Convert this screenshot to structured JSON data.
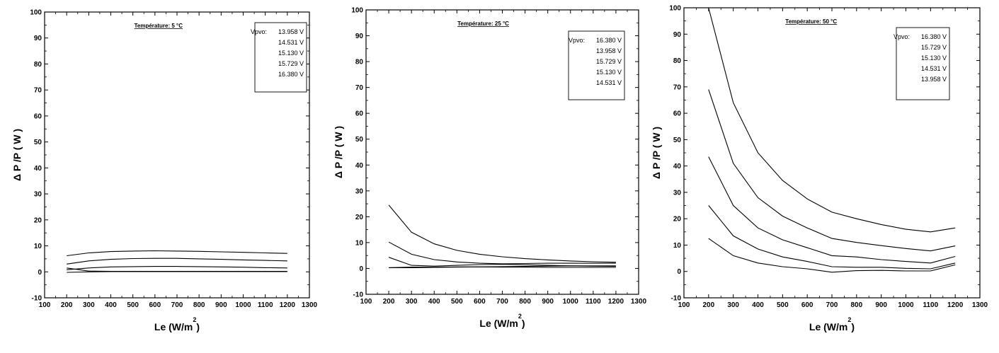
{
  "chart_data": [
    {
      "type": "line",
      "title": "Température: 5 °C",
      "xlabel": "Le (W/m",
      "xlabel_sup": "2",
      "xlabel_close": ")",
      "ylabel": "Δ P /P   ( W )",
      "xlim": [
        100,
        1300
      ],
      "ylim": [
        -10,
        100
      ],
      "xticks": [
        100,
        200,
        300,
        400,
        500,
        600,
        700,
        800,
        900,
        1000,
        1100,
        1200,
        1300
      ],
      "yticks": [
        -10,
        0,
        10,
        20,
        30,
        40,
        50,
        60,
        70,
        80,
        90,
        100
      ],
      "legend_prefix": "Vpvo:",
      "legend_position": "top-right",
      "x": [
        200,
        300,
        400,
        500,
        600,
        700,
        800,
        900,
        1000,
        1100,
        1200
      ],
      "series": [
        {
          "name": "13.958 V",
          "values": [
            1.5,
            0.3,
            0.2,
            0.2,
            0.2,
            0.2,
            0.2,
            0.2,
            0.2,
            0.2,
            0.2
          ]
        },
        {
          "name": "14.531 V",
          "values": [
            -0.2,
            0.0,
            0.1,
            0.1,
            0.1,
            0.1,
            0.1,
            0.1,
            0.1,
            0.1,
            0.1
          ]
        },
        {
          "name": "15.130 V",
          "values": [
            0.8,
            1.5,
            1.9,
            2.0,
            2.1,
            2.1,
            2.0,
            1.9,
            1.8,
            1.6,
            1.5
          ]
        },
        {
          "name": "15.729 V",
          "values": [
            3.0,
            4.2,
            4.8,
            5.1,
            5.2,
            5.2,
            5.0,
            4.8,
            4.6,
            4.4,
            4.2
          ]
        },
        {
          "name": "16.380 V",
          "values": [
            6.2,
            7.3,
            7.8,
            8.0,
            8.1,
            8.0,
            7.9,
            7.7,
            7.5,
            7.3,
            7.1
          ]
        }
      ]
    },
    {
      "type": "line",
      "title": "Température: 25 °C",
      "xlabel": "Le (W/m",
      "xlabel_sup": "2",
      "xlabel_close": ")",
      "ylabel": "Δ P /P   ( W )",
      "xlim": [
        100,
        1300
      ],
      "ylim": [
        -10,
        100
      ],
      "xticks": [
        100,
        200,
        300,
        400,
        500,
        600,
        700,
        800,
        900,
        1000,
        1100,
        1200,
        1300
      ],
      "yticks": [
        -10,
        0,
        10,
        20,
        30,
        40,
        50,
        60,
        70,
        80,
        90,
        100
      ],
      "legend_prefix": "Vpvo:",
      "legend_position": "top-right",
      "x": [
        200,
        300,
        400,
        500,
        600,
        700,
        800,
        900,
        1000,
        1100,
        1200
      ],
      "series": [
        {
          "name": "16.380 V",
          "values": [
            24.5,
            14.0,
            9.5,
            7.0,
            5.5,
            4.5,
            3.8,
            3.3,
            2.9,
            2.6,
            2.4
          ]
        },
        {
          "name": "13.958 V",
          "values": [
            0.3,
            0.3,
            0.4,
            0.5,
            0.6,
            0.7,
            0.8,
            0.9,
            1.0,
            1.0,
            1.0
          ]
        },
        {
          "name": "15.729 V",
          "values": [
            10.2,
            5.5,
            3.4,
            2.5,
            2.0,
            1.8,
            1.9,
            2.0,
            2.0,
            2.0,
            2.0
          ]
        },
        {
          "name": "15.130 V",
          "values": [
            4.3,
            1.2,
            0.9,
            1.2,
            1.5,
            1.6,
            1.4,
            1.2,
            1.0,
            0.9,
            0.8
          ]
        },
        {
          "name": "14.531 V",
          "values": [
            0.3,
            0.5,
            0.5,
            0.6,
            0.6,
            0.5,
            0.5,
            0.4,
            0.4,
            0.4,
            0.4
          ]
        }
      ]
    },
    {
      "type": "line",
      "title": "Température: 50 °C",
      "xlabel": "Le (W/m",
      "xlabel_sup": "2",
      "xlabel_close": ")",
      "ylabel": "Δ P /P   ( W )",
      "xlim": [
        100,
        1300
      ],
      "ylim": [
        -10,
        100
      ],
      "xticks": [
        100,
        200,
        300,
        400,
        500,
        600,
        700,
        800,
        900,
        1000,
        1100,
        1200,
        1300
      ],
      "yticks": [
        -10,
        0,
        10,
        20,
        30,
        40,
        50,
        60,
        70,
        80,
        90,
        100
      ],
      "legend_prefix": "Vpvo:",
      "legend_position": "top-right",
      "x": [
        200,
        300,
        400,
        500,
        600,
        700,
        800,
        900,
        1000,
        1100,
        1200
      ],
      "series": [
        {
          "name": "16.380 V",
          "values": [
            100,
            64,
            45,
            34.5,
            27.5,
            22.5,
            20,
            17.8,
            16,
            15,
            16.5
          ]
        },
        {
          "name": "15.729 V",
          "values": [
            69,
            41,
            28,
            21,
            16.5,
            12.5,
            11,
            9.8,
            8.7,
            7.8,
            9.7
          ]
        },
        {
          "name": "15.130 V",
          "values": [
            43.5,
            25,
            16.5,
            12,
            9,
            6,
            5.5,
            4.5,
            3.8,
            3.2,
            5.7
          ]
        },
        {
          "name": "14.531 V",
          "values": [
            25,
            13.5,
            8.5,
            5.5,
            3.8,
            1.8,
            1.6,
            1.6,
            1.2,
            1.0,
            3.2
          ]
        },
        {
          "name": "13.958 V",
          "values": [
            12.5,
            6,
            3.2,
            1.8,
            1.0,
            -0.3,
            0.3,
            0.4,
            0.2,
            0.2,
            2.5
          ]
        }
      ]
    }
  ]
}
